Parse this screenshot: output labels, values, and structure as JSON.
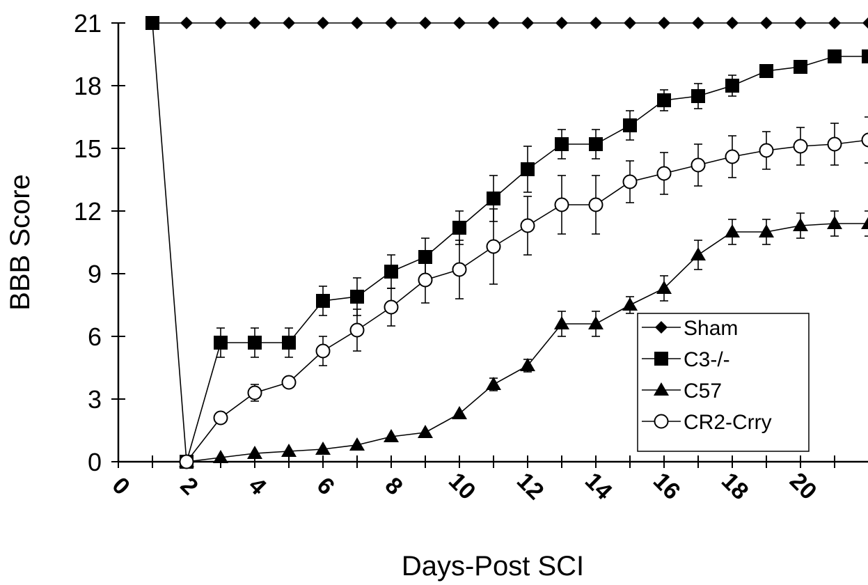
{
  "chart_data": {
    "type": "line",
    "xlabel": "Days-Post SCI",
    "ylabel": "BBB Score",
    "xlim": [
      0,
      22
    ],
    "ylim": [
      0,
      21
    ],
    "x_ticks": [
      0,
      2,
      4,
      6,
      8,
      10,
      12,
      14,
      16,
      18,
      20
    ],
    "y_ticks": [
      0,
      3,
      6,
      9,
      12,
      15,
      18,
      21
    ],
    "x_tick_labels": [
      "0",
      "2",
      "4",
      "6",
      "8",
      "10",
      "12",
      "14",
      "16",
      "18",
      "20"
    ],
    "y_tick_labels": [
      "0",
      "3",
      "6",
      "9",
      "12",
      "15",
      "18",
      "21"
    ],
    "grid": false,
    "legend_position": "bottom-right",
    "legend": [
      "Sham",
      "C3-/-",
      "C57",
      "CR2-Crry"
    ],
    "series": [
      {
        "name": "Sham",
        "marker": "diamond",
        "x": [
          1,
          2,
          3,
          4,
          5,
          6,
          7,
          8,
          9,
          10,
          11,
          12,
          13,
          14,
          15,
          16,
          17,
          18,
          19,
          20,
          21,
          22
        ],
        "y": [
          21,
          21,
          21,
          21,
          21,
          21,
          21,
          21,
          21,
          21,
          21,
          21,
          21,
          21,
          21,
          21,
          21,
          21,
          21,
          21,
          21,
          21
        ],
        "err": []
      },
      {
        "name": "C3-/-",
        "marker": "square",
        "x": [
          1,
          2,
          3,
          4,
          5,
          6,
          7,
          8,
          9,
          10,
          11,
          12,
          13,
          14,
          15,
          16,
          17,
          18,
          19,
          20,
          21,
          22
        ],
        "y": [
          21,
          0,
          5.7,
          5.7,
          5.7,
          7.7,
          7.9,
          9.1,
          9.8,
          11.2,
          12.6,
          14.0,
          15.2,
          15.2,
          16.1,
          17.3,
          17.5,
          18.0,
          18.7,
          18.9,
          19.4,
          19.4
        ],
        "err": [
          0,
          0,
          0.7,
          0.7,
          0.7,
          0.7,
          0.9,
          0.8,
          0.9,
          0.8,
          1.1,
          1.1,
          0.7,
          0.7,
          0.7,
          0.5,
          0.6,
          0.5,
          0.3,
          0.3,
          0.2,
          0.2
        ]
      },
      {
        "name": "C57",
        "marker": "triangle",
        "x": [
          2,
          3,
          4,
          5,
          6,
          7,
          8,
          9,
          10,
          11,
          12,
          13,
          14,
          15,
          16,
          17,
          18,
          19,
          20,
          21,
          22
        ],
        "y": [
          0,
          0.2,
          0.4,
          0.5,
          0.6,
          0.8,
          1.2,
          1.4,
          2.3,
          3.7,
          4.6,
          6.6,
          6.6,
          7.5,
          8.3,
          9.9,
          11.0,
          11.0,
          11.3,
          11.4,
          11.4
        ],
        "err": [
          0,
          0,
          0,
          0,
          0,
          0,
          0,
          0,
          0,
          0.3,
          0.3,
          0.6,
          0.6,
          0.4,
          0.6,
          0.7,
          0.6,
          0.6,
          0.6,
          0.6,
          0.6
        ]
      },
      {
        "name": "CR2-Crry",
        "marker": "open-circle",
        "x": [
          2,
          3,
          4,
          5,
          6,
          7,
          8,
          9,
          10,
          11,
          12,
          13,
          14,
          15,
          16,
          17,
          18,
          19,
          20,
          21,
          22
        ],
        "y": [
          0,
          2.1,
          3.3,
          3.8,
          5.3,
          6.3,
          7.4,
          8.7,
          9.2,
          10.3,
          11.3,
          12.3,
          12.3,
          13.4,
          13.8,
          14.2,
          14.6,
          14.9,
          15.1,
          15.2,
          15.4
        ],
        "err": [
          0,
          0,
          0.4,
          0,
          0.7,
          1.0,
          0.9,
          1.1,
          1.4,
          1.8,
          1.4,
          1.4,
          1.4,
          1.0,
          1.0,
          1.0,
          1.0,
          0.9,
          0.9,
          1.0,
          1.1
        ]
      }
    ]
  }
}
